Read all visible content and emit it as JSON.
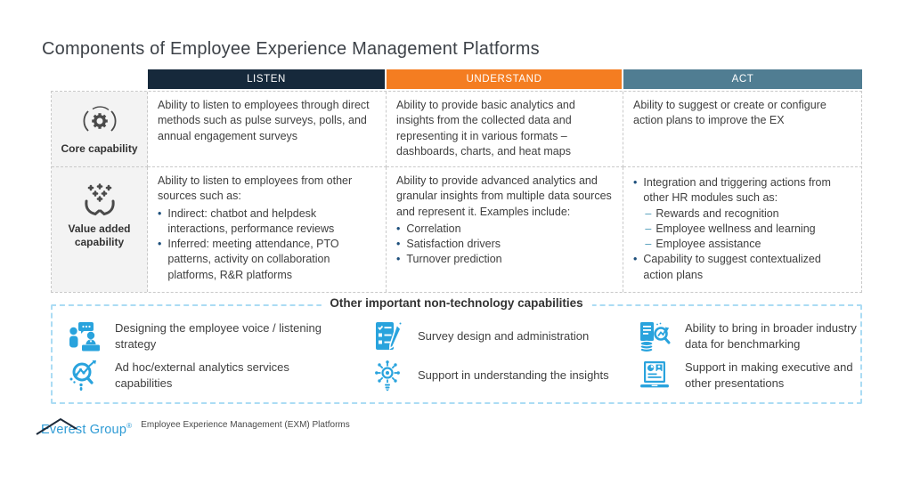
{
  "title": "Components of Employee Experience Management Platforms",
  "colors": {
    "listen_header": "#16293b",
    "understand_header": "#f47d21",
    "act_header": "#507d92",
    "bullet": "#1d4f7c",
    "sub_dash": "#4b9ab8",
    "icon_blue": "#29a3dd",
    "box_dash_blue": "#abdcf4"
  },
  "table": {
    "columns": [
      {
        "label": "LISTEN"
      },
      {
        "label": "UNDERSTAND"
      },
      {
        "label": "ACT"
      }
    ],
    "rows": [
      {
        "label": "Core capability",
        "icon": "gear-circle-icon",
        "cells": [
          {
            "intro": "Ability to listen to employees through direct methods such as pulse surveys, polls, and annual engagement surveys",
            "bullets": []
          },
          {
            "intro": "Ability to provide basic analytics and insights from the collected data and representing it in various formats – dashboards, charts, and heat maps",
            "bullets": []
          },
          {
            "intro": "Ability to suggest or create or configure action plans to improve the EX",
            "bullets": []
          }
        ]
      },
      {
        "label": "Value added capability",
        "icon": "hands-plus-icon",
        "cells": [
          {
            "intro": "Ability to listen to employees from other sources such as:",
            "bullets": [
              {
                "text": "Indirect: chatbot and helpdesk interactions, performance reviews"
              },
              {
                "text": "Inferred: meeting attendance, PTO patterns, activity on collaboration platforms, R&R platforms"
              }
            ]
          },
          {
            "intro": "Ability to provide advanced analytics and granular insights from multiple data sources and represent it. Examples include:",
            "bullets": [
              {
                "text": "Correlation"
              },
              {
                "text": "Satisfaction drivers"
              },
              {
                "text": "Turnover prediction"
              }
            ]
          },
          {
            "intro": "",
            "bullets": [
              {
                "text": "Integration and triggering actions from other HR modules such as:",
                "subbullets": [
                  "Rewards and recognition",
                  "Employee wellness and learning",
                  "Employee assistance"
                ]
              },
              {
                "text": "Capability to suggest contextualized action plans"
              }
            ]
          }
        ]
      }
    ]
  },
  "other_section": {
    "title": "Other important non-technology capabilities",
    "items": [
      {
        "icon": "employee-voice-icon",
        "text": "Designing the employee voice / listening strategy"
      },
      {
        "icon": "survey-design-icon",
        "text": "Survey design and administration"
      },
      {
        "icon": "industry-data-icon",
        "text": "Ability to bring in broader industry data for benchmarking"
      },
      {
        "icon": "adhoc-analytics-icon",
        "text": "Ad hoc/external analytics services capabilities"
      },
      {
        "icon": "insights-icon",
        "text": "Support in understanding the insights"
      },
      {
        "icon": "presentation-icon",
        "text": "Support in making executive and other presentations"
      }
    ]
  },
  "footer": {
    "logo_text": "Everest Group",
    "logo_reg": "®",
    "caption": "Employee Experience Management (EXM) Platforms"
  }
}
